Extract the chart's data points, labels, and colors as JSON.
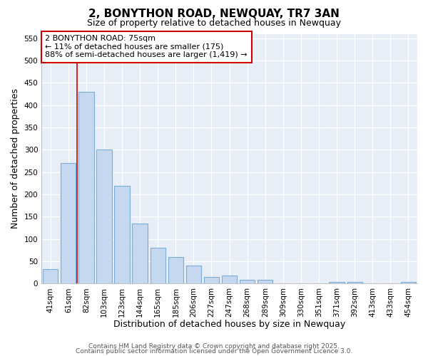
{
  "title": "2, BONYTHON ROAD, NEWQUAY, TR7 3AN",
  "subtitle": "Size of property relative to detached houses in Newquay",
  "xlabel": "Distribution of detached houses by size in Newquay",
  "ylabel": "Number of detached properties",
  "categories": [
    "41sqm",
    "61sqm",
    "82sqm",
    "103sqm",
    "123sqm",
    "144sqm",
    "165sqm",
    "185sqm",
    "206sqm",
    "227sqm",
    "247sqm",
    "268sqm",
    "289sqm",
    "309sqm",
    "330sqm",
    "351sqm",
    "371sqm",
    "392sqm",
    "413sqm",
    "433sqm",
    "454sqm"
  ],
  "values": [
    32,
    270,
    430,
    300,
    220,
    135,
    80,
    60,
    40,
    15,
    18,
    8,
    9,
    0,
    0,
    0,
    4,
    4,
    0,
    0,
    4
  ],
  "bar_color": "#c5d8f0",
  "bar_edge_color": "#7aadd4",
  "bar_linewidth": 0.8,
  "vline_x_index": 1,
  "vline_color": "#cc0000",
  "annotation_line1": "2 BONYTHON ROAD: 75sqm",
  "annotation_line2": "← 11% of detached houses are smaller (175)",
  "annotation_line3": "88% of semi-detached houses are larger (1,419) →",
  "annotation_box_edgecolor": "#cc0000",
  "annotation_box_facecolor": "#ffffff",
  "ylim": [
    0,
    560
  ],
  "yticks": [
    0,
    50,
    100,
    150,
    200,
    250,
    300,
    350,
    400,
    450,
    500,
    550
  ],
  "plot_bg_color": "#e8eef8",
  "fig_bg_color": "#ffffff",
  "grid_color": "#ffffff",
  "footer_line1": "Contains HM Land Registry data © Crown copyright and database right 2025.",
  "footer_line2": "Contains public sector information licensed under the Open Government Licence 3.0.",
  "title_fontsize": 11,
  "subtitle_fontsize": 9,
  "tick_fontsize": 7.5,
  "ylabel_fontsize": 9,
  "xlabel_fontsize": 9,
  "annotation_fontsize": 8,
  "footer_fontsize": 6.5
}
